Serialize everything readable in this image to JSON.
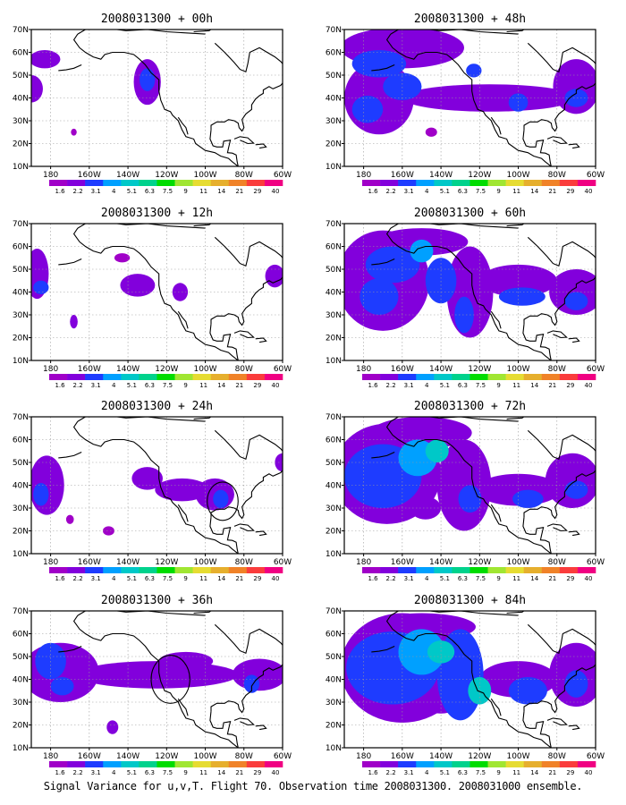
{
  "caption": "Signal Variance for u,v,T. Flight 70. Observation time 2008031300. 2008031000 ensemble.",
  "colorbar": {
    "labels": [
      "1.6",
      "2.2",
      "3.1",
      "4",
      "5.1",
      "6.3",
      "7.5",
      "9",
      "11",
      "14",
      "21",
      "29",
      "40"
    ],
    "colors": [
      "#a000c8",
      "#8200dc",
      "#1e3cff",
      "#00a0ff",
      "#00c8c8",
      "#00d28c",
      "#00dc00",
      "#a0e632",
      "#e6dc32",
      "#e6af2d",
      "#f08228",
      "#fa3c3c",
      "#f00082"
    ]
  },
  "chart_data": [
    {
      "type": "heatmap",
      "title": "2008031300 + 00h",
      "lead_hours": 0,
      "x_ticks": [
        "180",
        "160W",
        "140W",
        "120W",
        "100W",
        "80W",
        "60W"
      ],
      "x_range": [
        -190,
        -60
      ],
      "y_ticks": [
        "10N",
        "20N",
        "30N",
        "40N",
        "50N",
        "60N",
        "70N"
      ],
      "y_range": [
        10,
        70
      ],
      "blobs": [
        [
          -183,
          57,
          8,
          4,
          1
        ],
        [
          -190,
          44,
          6,
          6,
          1
        ],
        [
          -130,
          47,
          7,
          10,
          1
        ],
        [
          -130,
          48,
          4,
          5,
          2
        ],
        [
          -168,
          25,
          1.5,
          1.5,
          0
        ]
      ]
    },
    {
      "type": "heatmap",
      "title": "2008031300 + 12h",
      "lead_hours": 12,
      "x_ticks": [
        "180",
        "160W",
        "140W",
        "120W",
        "100W",
        "80W",
        "60W"
      ],
      "x_range": [
        -190,
        -60
      ],
      "y_ticks": [
        "10N",
        "20N",
        "30N",
        "40N",
        "50N",
        "60N",
        "70N"
      ],
      "y_range": [
        10,
        70
      ],
      "blobs": [
        [
          -187,
          48,
          6,
          11,
          1
        ],
        [
          -185,
          42,
          4,
          3,
          2
        ],
        [
          -135,
          43,
          9,
          5,
          1
        ],
        [
          -143,
          55,
          4,
          2,
          0
        ],
        [
          -113,
          40,
          4,
          4,
          1
        ],
        [
          -64,
          47,
          5,
          5,
          1
        ],
        [
          -168,
          27,
          2,
          3,
          1
        ]
      ]
    },
    {
      "type": "heatmap",
      "title": "2008031300 + 24h",
      "lead_hours": 24,
      "x_ticks": [
        "180",
        "160W",
        "140W",
        "120W",
        "100W",
        "80W",
        "60W"
      ],
      "x_range": [
        -190,
        -60
      ],
      "y_ticks": [
        "10N",
        "20N",
        "30N",
        "40N",
        "50N",
        "60N",
        "70N"
      ],
      "y_range": [
        10,
        70
      ],
      "blobs": [
        [
          -182,
          40,
          9,
          13,
          1
        ],
        [
          -185,
          36,
          4,
          5,
          2
        ],
        [
          -130,
          43,
          8,
          5,
          1
        ],
        [
          -112,
          38,
          14,
          5,
          1
        ],
        [
          -95,
          36,
          10,
          7,
          1
        ],
        [
          -92,
          34,
          4,
          4,
          2
        ],
        [
          -150,
          20,
          3,
          2,
          0
        ],
        [
          -170,
          25,
          2,
          2,
          0
        ],
        [
          -60,
          50,
          4,
          4,
          1
        ]
      ],
      "circles": [
        [
          -91,
          33,
          8
        ]
      ]
    },
    {
      "type": "heatmap",
      "title": "2008031300 + 36h",
      "lead_hours": 36,
      "x_ticks": [
        "180",
        "160W",
        "140W",
        "120W",
        "100W",
        "80W",
        "60W"
      ],
      "x_range": [
        -190,
        -60
      ],
      "y_ticks": [
        "10N",
        "20N",
        "30N",
        "40N",
        "50N",
        "60N",
        "70N"
      ],
      "y_range": [
        10,
        70
      ],
      "blobs": [
        [
          -175,
          43,
          20,
          13,
          1
        ],
        [
          -180,
          48,
          8,
          8,
          2
        ],
        [
          -174,
          37,
          6,
          4,
          2
        ],
        [
          -125,
          42,
          42,
          6,
          1
        ],
        [
          -110,
          48,
          14,
          4,
          1
        ],
        [
          -72,
          42,
          14,
          7,
          1
        ],
        [
          -76,
          38,
          4,
          4,
          2
        ],
        [
          -148,
          19,
          3,
          3,
          1
        ]
      ],
      "circles": [
        [
          -118,
          40,
          10
        ]
      ]
    },
    {
      "type": "heatmap",
      "title": "2008031300 + 48h",
      "lead_hours": 48,
      "x_ticks": [
        "180",
        "160W",
        "140W",
        "120W",
        "100W",
        "80W",
        "60W"
      ],
      "x_range": [
        -190,
        -60
      ],
      "y_ticks": [
        "10N",
        "20N",
        "30N",
        "40N",
        "50N",
        "60N",
        "70N"
      ],
      "y_range": [
        10,
        70
      ],
      "blobs": [
        [
          -160,
          62,
          32,
          9,
          1
        ],
        [
          -172,
          55,
          14,
          6,
          2
        ],
        [
          -172,
          40,
          18,
          16,
          1
        ],
        [
          -178,
          35,
          8,
          6,
          2
        ],
        [
          -160,
          45,
          10,
          6,
          2
        ],
        [
          -115,
          40,
          45,
          6,
          1
        ],
        [
          -100,
          38,
          5,
          4,
          2
        ],
        [
          -70,
          45,
          12,
          12,
          1
        ],
        [
          -70,
          40,
          6,
          4,
          2
        ],
        [
          -123,
          52,
          4,
          3,
          2
        ],
        [
          -145,
          25,
          3,
          2,
          0
        ]
      ]
    },
    {
      "type": "heatmap",
      "title": "2008031300 + 60h",
      "lead_hours": 60,
      "x_ticks": [
        "180",
        "160W",
        "140W",
        "120W",
        "100W",
        "80W",
        "60W"
      ],
      "x_range": [
        -190,
        -60
      ],
      "y_ticks": [
        "10N",
        "20N",
        "30N",
        "40N",
        "50N",
        "60N",
        "70N"
      ],
      "y_range": [
        10,
        70
      ],
      "blobs": [
        [
          -170,
          45,
          24,
          22,
          1
        ],
        [
          -165,
          52,
          14,
          8,
          2
        ],
        [
          -172,
          38,
          10,
          8,
          2
        ],
        [
          -150,
          58,
          6,
          5,
          3
        ],
        [
          -140,
          45,
          8,
          10,
          2
        ],
        [
          -150,
          62,
          24,
          6,
          1
        ],
        [
          -125,
          40,
          12,
          20,
          1
        ],
        [
          -128,
          30,
          5,
          8,
          2
        ],
        [
          -100,
          45,
          20,
          7,
          1
        ],
        [
          -98,
          38,
          12,
          4,
          2
        ],
        [
          -70,
          40,
          14,
          10,
          1
        ],
        [
          -70,
          36,
          6,
          4,
          2
        ]
      ]
    },
    {
      "type": "heatmap",
      "title": "2008031300 + 72h",
      "lead_hours": 72,
      "x_ticks": [
        "180",
        "160W",
        "140W",
        "120W",
        "100W",
        "80W",
        "60W"
      ],
      "x_range": [
        -190,
        -60
      ],
      "y_ticks": [
        "10N",
        "20N",
        "30N",
        "40N",
        "50N",
        "60N",
        "70N"
      ],
      "y_range": [
        10,
        70
      ],
      "blobs": [
        [
          -168,
          45,
          28,
          22,
          1
        ],
        [
          -170,
          44,
          20,
          14,
          2
        ],
        [
          -152,
          52,
          10,
          8,
          3
        ],
        [
          -142,
          55,
          6,
          5,
          4
        ],
        [
          -150,
          63,
          26,
          7,
          1
        ],
        [
          -128,
          40,
          14,
          20,
          1
        ],
        [
          -125,
          34,
          6,
          6,
          2
        ],
        [
          -100,
          38,
          22,
          7,
          1
        ],
        [
          -95,
          34,
          8,
          4,
          2
        ],
        [
          -72,
          42,
          14,
          12,
          1
        ],
        [
          -70,
          38,
          6,
          4,
          2
        ],
        [
          -148,
          30,
          8,
          5,
          1
        ]
      ]
    },
    {
      "type": "heatmap",
      "title": "2008031300 + 84h",
      "lead_hours": 84,
      "x_ticks": [
        "180",
        "160W",
        "140W",
        "120W",
        "100W",
        "80W",
        "60W"
      ],
      "x_range": [
        -190,
        -60
      ],
      "y_ticks": [
        "10N",
        "20N",
        "30N",
        "40N",
        "50N",
        "60N",
        "70N"
      ],
      "y_range": [
        10,
        70
      ],
      "blobs": [
        [
          -160,
          45,
          32,
          24,
          1
        ],
        [
          -165,
          45,
          24,
          16,
          2
        ],
        [
          -150,
          52,
          12,
          10,
          3
        ],
        [
          -140,
          52,
          7,
          5,
          4
        ],
        [
          -130,
          42,
          12,
          20,
          2
        ],
        [
          -120,
          35,
          6,
          6,
          4
        ],
        [
          -100,
          40,
          20,
          8,
          1
        ],
        [
          -95,
          35,
          10,
          6,
          2
        ],
        [
          -70,
          42,
          14,
          14,
          1
        ],
        [
          -70,
          38,
          6,
          6,
          2
        ],
        [
          -140,
          30,
          10,
          5,
          1
        ],
        [
          -150,
          63,
          28,
          6,
          1
        ]
      ]
    }
  ]
}
